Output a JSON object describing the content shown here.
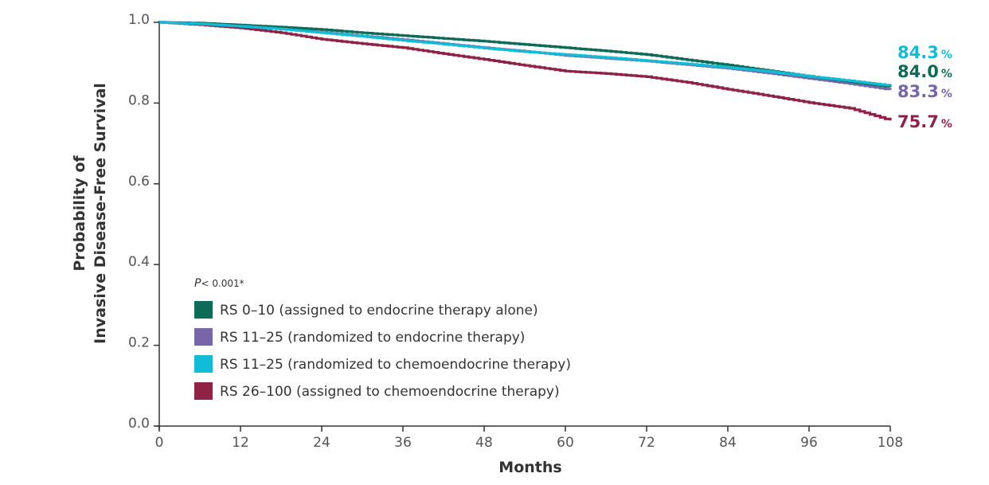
{
  "chart_data": {
    "type": "line",
    "xlabel": "Months",
    "ylabel_line1": "Probability of",
    "ylabel_line2": "Invasive Disease-Free Survival",
    "xlim": [
      0,
      108
    ],
    "ylim": [
      0.0,
      1.0
    ],
    "x_ticks": [
      "0",
      "12",
      "24",
      "36",
      "48",
      "60",
      "72",
      "84",
      "96",
      "108"
    ],
    "y_ticks": [
      "0.0",
      "0.2",
      "0.4",
      "0.6",
      "0.8",
      "1.0"
    ],
    "grid": false,
    "legend_position": "lower-left",
    "annotation": {
      "p_italic": "P",
      "p_rest": "< 0.001*"
    },
    "series": [
      {
        "name": "RS 0–10 (assigned to endocrine therapy alone)",
        "color": "#0e6b58",
        "end_value": "84.0",
        "end_unit": "%",
        "x": [
          0,
          6,
          12,
          18,
          24,
          30,
          36,
          42,
          48,
          54,
          60,
          66,
          72,
          78,
          84,
          90,
          96,
          102,
          108
        ],
        "y": [
          1.0,
          0.998,
          0.993,
          0.988,
          0.982,
          0.974,
          0.967,
          0.96,
          0.953,
          0.945,
          0.937,
          0.929,
          0.92,
          0.907,
          0.894,
          0.88,
          0.866,
          0.853,
          0.84
        ]
      },
      {
        "name": "RS 11–25 (randomized to endocrine therapy)",
        "color": "#7867a8",
        "end_value": "83.3",
        "end_unit": "%",
        "x": [
          0,
          6,
          12,
          18,
          24,
          30,
          36,
          42,
          48,
          54,
          60,
          66,
          72,
          78,
          84,
          90,
          96,
          102,
          108
        ],
        "y": [
          1.0,
          0.996,
          0.991,
          0.984,
          0.975,
          0.966,
          0.957,
          0.947,
          0.937,
          0.928,
          0.918,
          0.911,
          0.904,
          0.895,
          0.886,
          0.874,
          0.861,
          0.848,
          0.833
        ]
      },
      {
        "name": "RS 11–25 (randomized to chemoendocrine therapy)",
        "color": "#12bcd6",
        "end_value": "84.3",
        "end_unit": "%",
        "x": [
          0,
          6,
          12,
          18,
          24,
          30,
          36,
          42,
          48,
          54,
          60,
          66,
          72,
          78,
          84,
          90,
          96,
          102,
          108
        ],
        "y": [
          1.0,
          0.996,
          0.99,
          0.983,
          0.974,
          0.965,
          0.955,
          0.946,
          0.936,
          0.927,
          0.92,
          0.913,
          0.905,
          0.897,
          0.888,
          0.878,
          0.866,
          0.855,
          0.843
        ]
      },
      {
        "name": "RS 26–100 (assigned to chemoendocrine therapy)",
        "color": "#8e2345",
        "end_value": "75.7",
        "end_unit": "%",
        "x": [
          0,
          6,
          12,
          18,
          24,
          30,
          36,
          42,
          48,
          54,
          60,
          66,
          72,
          78,
          84,
          90,
          96,
          102,
          108
        ],
        "y": [
          1.0,
          0.994,
          0.986,
          0.974,
          0.958,
          0.947,
          0.937,
          0.922,
          0.908,
          0.893,
          0.879,
          0.873,
          0.865,
          0.851,
          0.834,
          0.818,
          0.801,
          0.787,
          0.757
        ]
      }
    ]
  }
}
